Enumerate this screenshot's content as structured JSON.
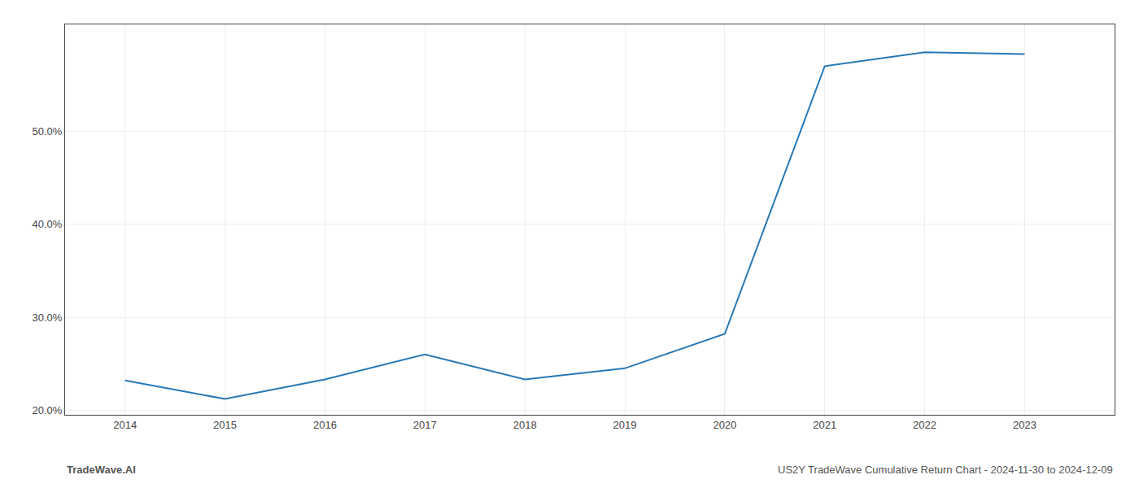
{
  "chart_data": {
    "type": "line",
    "x": [
      2014,
      2015,
      2016,
      2017,
      2018,
      2019,
      2020,
      2021,
      2022,
      2023
    ],
    "values": [
      23.2,
      21.2,
      23.3,
      26.0,
      23.3,
      24.5,
      28.2,
      57.0,
      58.5,
      58.3
    ],
    "color": "#2878b5",
    "xlim": [
      2013.4,
      2023.9
    ],
    "xticks": [
      2014,
      2015,
      2016,
      2017,
      2018,
      2019,
      2020,
      2021,
      2022,
      2023
    ],
    "ylim": [
      19.5,
      61.5
    ],
    "yticks": [
      {
        "value": 20.0,
        "label": "20.0%"
      },
      {
        "value": 30.0,
        "label": "30.0%"
      },
      {
        "value": 40.0,
        "label": "40.0%"
      },
      {
        "value": 50.0,
        "label": "50.0%"
      }
    ],
    "grid": true,
    "annotations": [
      "TradeWave.AI",
      "US2Y TradeWave Cumulative Return Chart - 2024-11-30 to 2024-12-09"
    ]
  }
}
